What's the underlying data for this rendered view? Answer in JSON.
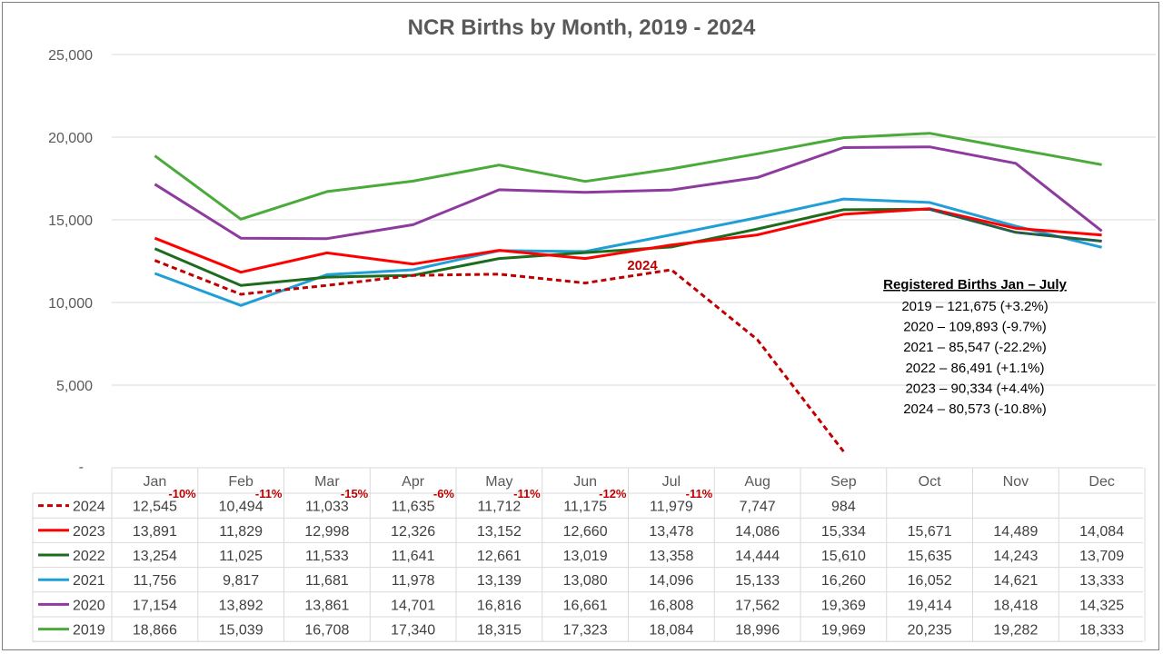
{
  "chart_data": {
    "type": "line",
    "title": "NCR Births by Month, 2019 - 2024",
    "categories": [
      "Jan",
      "Feb",
      "Mar",
      "Apr",
      "May",
      "Jun",
      "Jul",
      "Aug",
      "Sep",
      "Oct",
      "Nov",
      "Dec"
    ],
    "ylim": [
      0,
      25000
    ],
    "yticks": [
      "25,000",
      "20,000",
      "15,000",
      "10,000",
      "5,000",
      "-"
    ],
    "grid": true,
    "legend_placement": "table-left",
    "series": [
      {
        "name": "2024",
        "color": "#c00000",
        "dash": true,
        "values": [
          12545,
          10494,
          11033,
          11635,
          11712,
          11175,
          11979,
          7747,
          984,
          null,
          null,
          null
        ],
        "labels": [
          "12,545",
          "10,494",
          "11,033",
          "11,635",
          "11,712",
          "11,175",
          "11,979",
          "7,747",
          "984",
          "",
          "",
          ""
        ]
      },
      {
        "name": "2023",
        "color": "#ff0000",
        "dash": false,
        "values": [
          13891,
          11829,
          12998,
          12326,
          13152,
          12660,
          13478,
          14086,
          15334,
          15671,
          14489,
          14084
        ],
        "labels": [
          "13,891",
          "11,829",
          "12,998",
          "12,326",
          "13,152",
          "12,660",
          "13,478",
          "14,086",
          "15,334",
          "15,671",
          "14,489",
          "14,084"
        ]
      },
      {
        "name": "2022",
        "color": "#1e6b1e",
        "dash": false,
        "values": [
          13254,
          11025,
          11533,
          11641,
          12661,
          13019,
          13358,
          14444,
          15610,
          15635,
          14243,
          13709
        ],
        "labels": [
          "13,254",
          "11,025",
          "11,533",
          "11,641",
          "12,661",
          "13,019",
          "13,358",
          "14,444",
          "15,610",
          "15,635",
          "14,243",
          "13,709"
        ]
      },
      {
        "name": "2021",
        "color": "#1f9fd6",
        "dash": false,
        "values": [
          11756,
          9817,
          11681,
          11978,
          13139,
          13080,
          14096,
          15133,
          16260,
          16052,
          14621,
          13333
        ],
        "labels": [
          "11,756",
          "9,817",
          "11,681",
          "11,978",
          "13,139",
          "13,080",
          "14,096",
          "15,133",
          "16,260",
          "16,052",
          "14,621",
          "13,333"
        ]
      },
      {
        "name": "2020",
        "color": "#8e3a9e",
        "dash": false,
        "values": [
          17154,
          13892,
          13861,
          14701,
          16816,
          16661,
          16808,
          17562,
          19369,
          19414,
          18418,
          14325
        ],
        "labels": [
          "17,154",
          "13,892",
          "13,861",
          "14,701",
          "16,816",
          "16,661",
          "16,808",
          "17,562",
          "19,369",
          "19,414",
          "18,418",
          "14,325"
        ]
      },
      {
        "name": "2019",
        "color": "#4aaa3a",
        "dash": false,
        "values": [
          18866,
          15039,
          16708,
          17340,
          18315,
          17323,
          18084,
          18996,
          19969,
          20235,
          19282,
          18333
        ],
        "labels": [
          "18,866",
          "15,039",
          "16,708",
          "17,340",
          "18,315",
          "17,323",
          "18,084",
          "18,996",
          "19,969",
          "20,235",
          "19,282",
          "18,333"
        ]
      }
    ],
    "dashed_extra": {
      "color": "#2f4f6f",
      "values": [
        null,
        null,
        null,
        null,
        null,
        null,
        null,
        null,
        null,
        15635,
        14243,
        13709
      ]
    },
    "pct_changes": [
      "-10%",
      "-11%",
      "-15%",
      "-6%",
      "-11%",
      "-12%",
      "-11%"
    ],
    "series_tag": "2024",
    "annotation": {
      "title": "Registered Births Jan – July",
      "lines": [
        "2019 – 121,675 (+3.2%)",
        "2020 – 109,893 (-9.7%)",
        "2021 – 85,547 (-22.2%)",
        "2022 – 86,491 (+1.1%)",
        "2023 – 90,334 (+4.4%)",
        "2024 – 80,573 (-10.8%)"
      ]
    }
  }
}
